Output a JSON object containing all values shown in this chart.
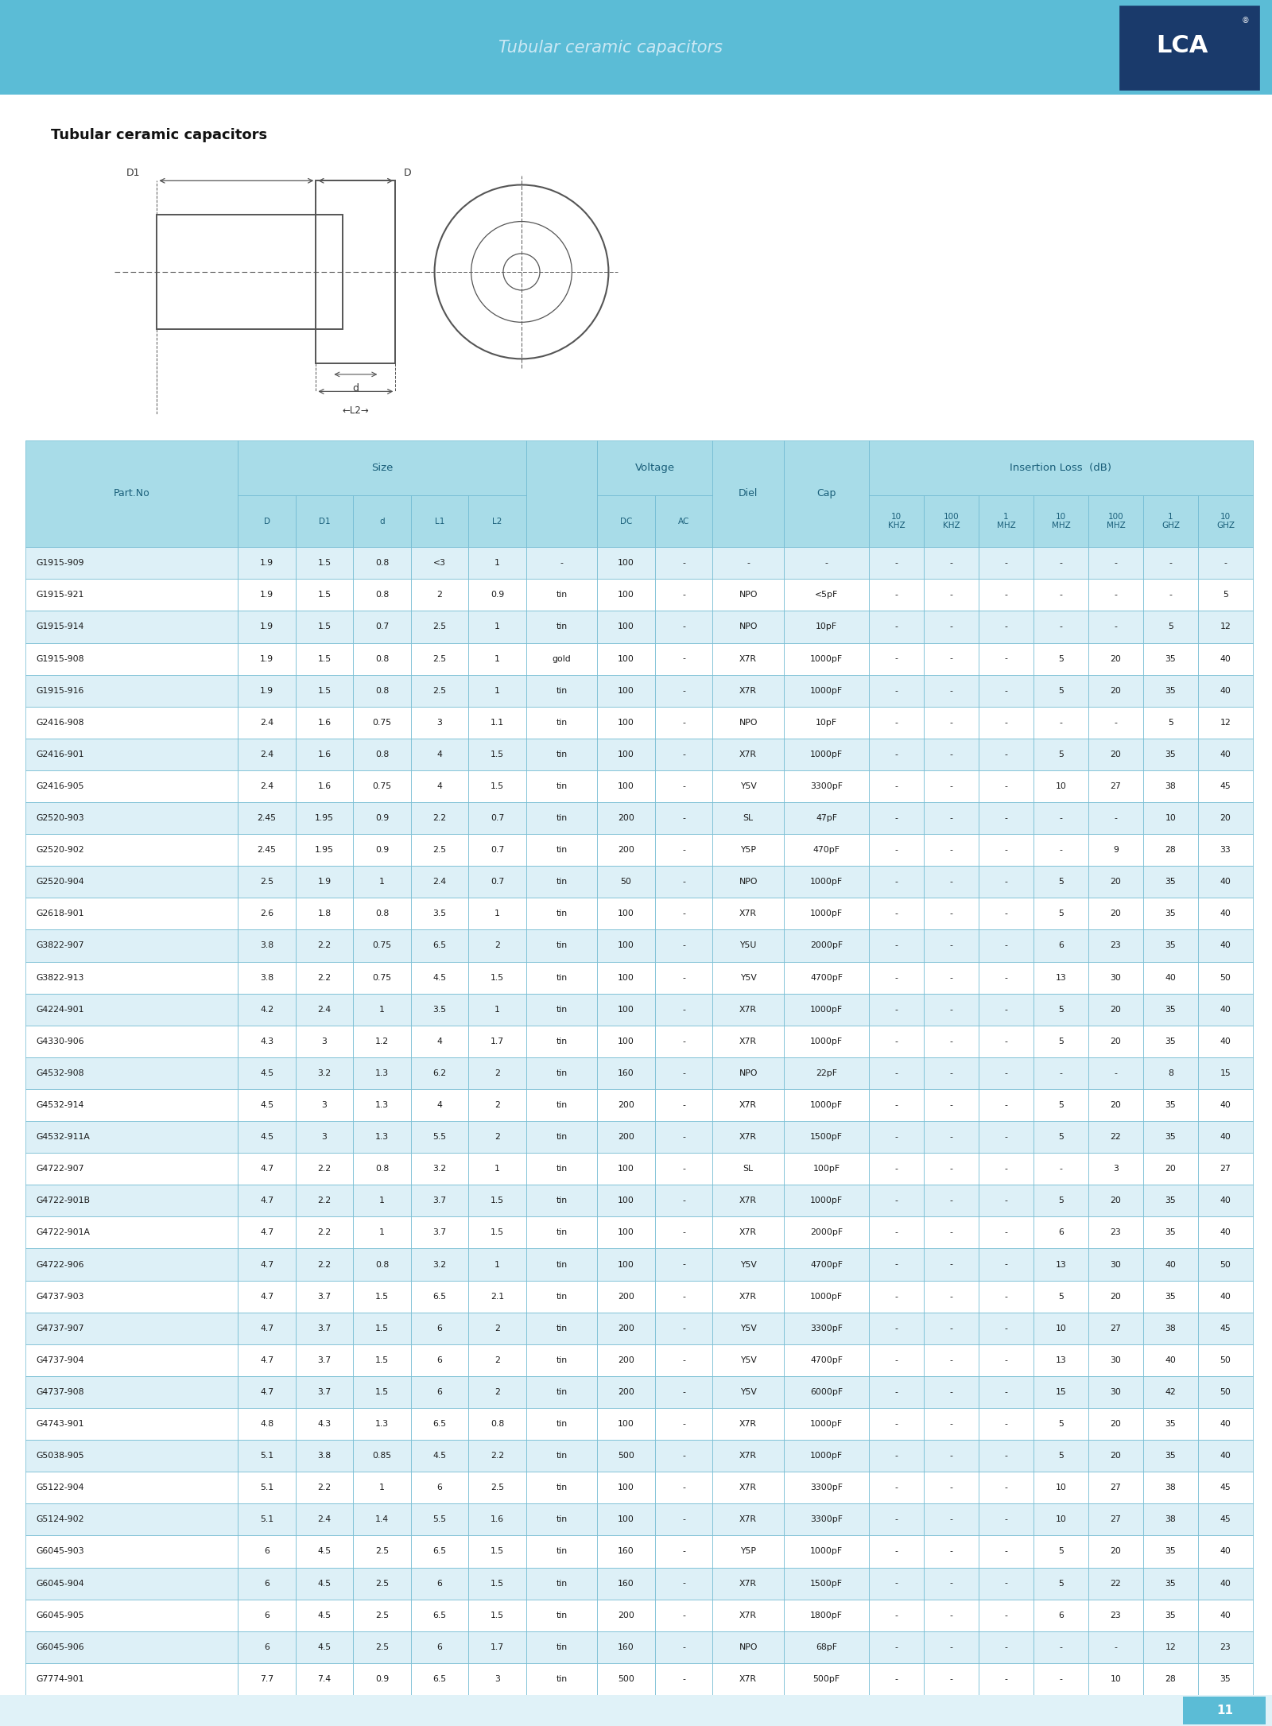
{
  "title_main": "Tubular ceramic capacitors",
  "page_number": "11",
  "header_bg": "#5bbcd6",
  "table_header_bg": "#a8dce8",
  "table_row_bg1": "#ddf0f7",
  "table_row_bg2": "#ffffff",
  "table_border": "#6cb8d0",
  "header_text_color": "#1a5f7a",
  "data_text_color": "#1a1a1a",
  "rows": [
    [
      "G1915-909",
      "1.9",
      "1.5",
      "0.8",
      "<3",
      "1",
      "-",
      "100",
      "-",
      "-",
      "-",
      "-",
      "-",
      "-",
      "-",
      "-",
      "-",
      "-"
    ],
    [
      "G1915-921",
      "1.9",
      "1.5",
      "0.8",
      "2",
      "0.9",
      "tin",
      "100",
      "-",
      "NPO",
      "<5pF",
      "-",
      "-",
      "-",
      "-",
      "-",
      "-",
      "5"
    ],
    [
      "G1915-914",
      "1.9",
      "1.5",
      "0.7",
      "2.5",
      "1",
      "tin",
      "100",
      "-",
      "NPO",
      "10pF",
      "-",
      "-",
      "-",
      "-",
      "-",
      "5",
      "12"
    ],
    [
      "G1915-908",
      "1.9",
      "1.5",
      "0.8",
      "2.5",
      "1",
      "gold",
      "100",
      "-",
      "X7R",
      "1000pF",
      "-",
      "-",
      "-",
      "5",
      "20",
      "35",
      "40"
    ],
    [
      "G1915-916",
      "1.9",
      "1.5",
      "0.8",
      "2.5",
      "1",
      "tin",
      "100",
      "-",
      "X7R",
      "1000pF",
      "-",
      "-",
      "-",
      "5",
      "20",
      "35",
      "40"
    ],
    [
      "G2416-908",
      "2.4",
      "1.6",
      "0.75",
      "3",
      "1.1",
      "tin",
      "100",
      "-",
      "NPO",
      "10pF",
      "-",
      "-",
      "-",
      "-",
      "-",
      "5",
      "12"
    ],
    [
      "G2416-901",
      "2.4",
      "1.6",
      "0.8",
      "4",
      "1.5",
      "tin",
      "100",
      "-",
      "X7R",
      "1000pF",
      "-",
      "-",
      "-",
      "5",
      "20",
      "35",
      "40"
    ],
    [
      "G2416-905",
      "2.4",
      "1.6",
      "0.75",
      "4",
      "1.5",
      "tin",
      "100",
      "-",
      "Y5V",
      "3300pF",
      "-",
      "-",
      "-",
      "10",
      "27",
      "38",
      "45"
    ],
    [
      "G2520-903",
      "2.45",
      "1.95",
      "0.9",
      "2.2",
      "0.7",
      "tin",
      "200",
      "-",
      "SL",
      "47pF",
      "-",
      "-",
      "-",
      "-",
      "-",
      "10",
      "20"
    ],
    [
      "G2520-902",
      "2.45",
      "1.95",
      "0.9",
      "2.5",
      "0.7",
      "tin",
      "200",
      "-",
      "Y5P",
      "470pF",
      "-",
      "-",
      "-",
      "-",
      "9",
      "28",
      "33"
    ],
    [
      "G2520-904",
      "2.5",
      "1.9",
      "1",
      "2.4",
      "0.7",
      "tin",
      "50",
      "-",
      "NPO",
      "1000pF",
      "-",
      "-",
      "-",
      "5",
      "20",
      "35",
      "40"
    ],
    [
      "G2618-901",
      "2.6",
      "1.8",
      "0.8",
      "3.5",
      "1",
      "tin",
      "100",
      "-",
      "X7R",
      "1000pF",
      "-",
      "-",
      "-",
      "5",
      "20",
      "35",
      "40"
    ],
    [
      "G3822-907",
      "3.8",
      "2.2",
      "0.75",
      "6.5",
      "2",
      "tin",
      "100",
      "-",
      "Y5U",
      "2000pF",
      "-",
      "-",
      "-",
      "6",
      "23",
      "35",
      "40"
    ],
    [
      "G3822-913",
      "3.8",
      "2.2",
      "0.75",
      "4.5",
      "1.5",
      "tin",
      "100",
      "-",
      "Y5V",
      "4700pF",
      "-",
      "-",
      "-",
      "13",
      "30",
      "40",
      "50"
    ],
    [
      "G4224-901",
      "4.2",
      "2.4",
      "1",
      "3.5",
      "1",
      "tin",
      "100",
      "-",
      "X7R",
      "1000pF",
      "-",
      "-",
      "-",
      "5",
      "20",
      "35",
      "40"
    ],
    [
      "G4330-906",
      "4.3",
      "3",
      "1.2",
      "4",
      "1.7",
      "tin",
      "100",
      "-",
      "X7R",
      "1000pF",
      "-",
      "-",
      "-",
      "5",
      "20",
      "35",
      "40"
    ],
    [
      "G4532-908",
      "4.5",
      "3.2",
      "1.3",
      "6.2",
      "2",
      "tin",
      "160",
      "-",
      "NPO",
      "22pF",
      "-",
      "-",
      "-",
      "-",
      "-",
      "8",
      "15"
    ],
    [
      "G4532-914",
      "4.5",
      "3",
      "1.3",
      "4",
      "2",
      "tin",
      "200",
      "-",
      "X7R",
      "1000pF",
      "-",
      "-",
      "-",
      "5",
      "20",
      "35",
      "40"
    ],
    [
      "G4532-911A",
      "4.5",
      "3",
      "1.3",
      "5.5",
      "2",
      "tin",
      "200",
      "-",
      "X7R",
      "1500pF",
      "-",
      "-",
      "-",
      "5",
      "22",
      "35",
      "40"
    ],
    [
      "G4722-907",
      "4.7",
      "2.2",
      "0.8",
      "3.2",
      "1",
      "tin",
      "100",
      "-",
      "SL",
      "100pF",
      "-",
      "-",
      "-",
      "-",
      "3",
      "20",
      "27"
    ],
    [
      "G4722-901B",
      "4.7",
      "2.2",
      "1",
      "3.7",
      "1.5",
      "tin",
      "100",
      "-",
      "X7R",
      "1000pF",
      "-",
      "-",
      "-",
      "5",
      "20",
      "35",
      "40"
    ],
    [
      "G4722-901A",
      "4.7",
      "2.2",
      "1",
      "3.7",
      "1.5",
      "tin",
      "100",
      "-",
      "X7R",
      "2000pF",
      "-",
      "-",
      "-",
      "6",
      "23",
      "35",
      "40"
    ],
    [
      "G4722-906",
      "4.7",
      "2.2",
      "0.8",
      "3.2",
      "1",
      "tin",
      "100",
      "-",
      "Y5V",
      "4700pF",
      "-",
      "-",
      "-",
      "13",
      "30",
      "40",
      "50"
    ],
    [
      "G4737-903",
      "4.7",
      "3.7",
      "1.5",
      "6.5",
      "2.1",
      "tin",
      "200",
      "-",
      "X7R",
      "1000pF",
      "-",
      "-",
      "-",
      "5",
      "20",
      "35",
      "40"
    ],
    [
      "G4737-907",
      "4.7",
      "3.7",
      "1.5",
      "6",
      "2",
      "tin",
      "200",
      "-",
      "Y5V",
      "3300pF",
      "-",
      "-",
      "-",
      "10",
      "27",
      "38",
      "45"
    ],
    [
      "G4737-904",
      "4.7",
      "3.7",
      "1.5",
      "6",
      "2",
      "tin",
      "200",
      "-",
      "Y5V",
      "4700pF",
      "-",
      "-",
      "-",
      "13",
      "30",
      "40",
      "50"
    ],
    [
      "G4737-908",
      "4.7",
      "3.7",
      "1.5",
      "6",
      "2",
      "tin",
      "200",
      "-",
      "Y5V",
      "6000pF",
      "-",
      "-",
      "-",
      "15",
      "30",
      "42",
      "50"
    ],
    [
      "G4743-901",
      "4.8",
      "4.3",
      "1.3",
      "6.5",
      "0.8",
      "tin",
      "100",
      "-",
      "X7R",
      "1000pF",
      "-",
      "-",
      "-",
      "5",
      "20",
      "35",
      "40"
    ],
    [
      "G5038-905",
      "5.1",
      "3.8",
      "0.85",
      "4.5",
      "2.2",
      "tin",
      "500",
      "-",
      "X7R",
      "1000pF",
      "-",
      "-",
      "-",
      "5",
      "20",
      "35",
      "40"
    ],
    [
      "G5122-904",
      "5.1",
      "2.2",
      "1",
      "6",
      "2.5",
      "tin",
      "100",
      "-",
      "X7R",
      "3300pF",
      "-",
      "-",
      "-",
      "10",
      "27",
      "38",
      "45"
    ],
    [
      "G5124-902",
      "5.1",
      "2.4",
      "1.4",
      "5.5",
      "1.6",
      "tin",
      "100",
      "-",
      "X7R",
      "3300pF",
      "-",
      "-",
      "-",
      "10",
      "27",
      "38",
      "45"
    ],
    [
      "G6045-903",
      "6",
      "4.5",
      "2.5",
      "6.5",
      "1.5",
      "tin",
      "160",
      "-",
      "Y5P",
      "1000pF",
      "-",
      "-",
      "-",
      "5",
      "20",
      "35",
      "40"
    ],
    [
      "G6045-904",
      "6",
      "4.5",
      "2.5",
      "6",
      "1.5",
      "tin",
      "160",
      "-",
      "X7R",
      "1500pF",
      "-",
      "-",
      "-",
      "5",
      "22",
      "35",
      "40"
    ],
    [
      "G6045-905",
      "6",
      "4.5",
      "2.5",
      "6.5",
      "1.5",
      "tin",
      "200",
      "-",
      "X7R",
      "1800pF",
      "-",
      "-",
      "-",
      "6",
      "23",
      "35",
      "40"
    ],
    [
      "G6045-906",
      "6",
      "4.5",
      "2.5",
      "6",
      "1.7",
      "tin",
      "160",
      "-",
      "NPO",
      "68pF",
      "-",
      "-",
      "-",
      "-",
      "-",
      "12",
      "23"
    ],
    [
      "G7774-901",
      "7.7",
      "7.4",
      "0.9",
      "6.5",
      "3",
      "tin",
      "500",
      "-",
      "X7R",
      "500pF",
      "-",
      "-",
      "-",
      "-",
      "10",
      "28",
      "35"
    ]
  ]
}
